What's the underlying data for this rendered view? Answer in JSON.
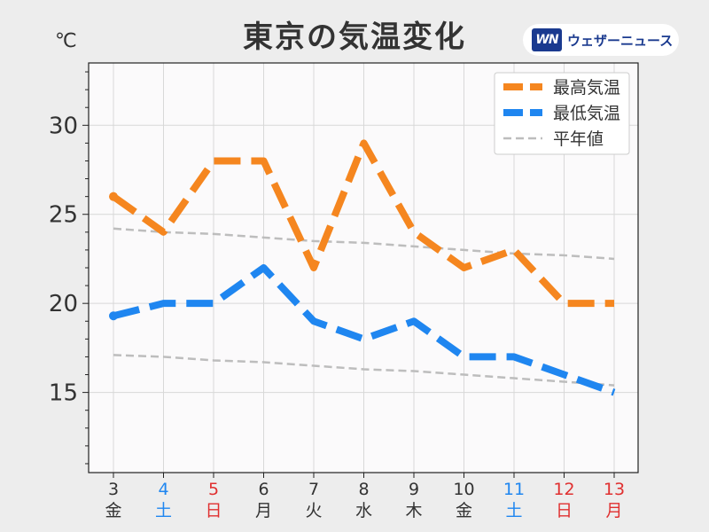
{
  "header": {
    "title": "東京の気温変化",
    "unit": "℃",
    "logo_mark": "WN",
    "logo_text": "ウェザーニュース"
  },
  "chart_data": {
    "type": "line",
    "x": [
      "3",
      "4",
      "5",
      "6",
      "7",
      "8",
      "9",
      "10",
      "11",
      "12",
      "13"
    ],
    "weekdays": [
      "金",
      "土",
      "日",
      "月",
      "火",
      "水",
      "木",
      "金",
      "土",
      "日",
      "月"
    ],
    "day_types": [
      "weekday",
      "saturday",
      "holiday",
      "weekday",
      "weekday",
      "weekday",
      "weekday",
      "weekday",
      "saturday",
      "holiday",
      "holiday"
    ],
    "series": [
      {
        "name": "最高気温",
        "color": "#f5861f",
        "style": "thick-dashed",
        "values": [
          26,
          24,
          28,
          28,
          22,
          29,
          24,
          22,
          23,
          20,
          20
        ]
      },
      {
        "name": "最低気温",
        "color": "#1f86f0",
        "style": "thick-dashed",
        "values": [
          19.3,
          20,
          20,
          22,
          19,
          18,
          19,
          17,
          17,
          16,
          15
        ]
      },
      {
        "name": "平年値",
        "color": "#bdbdbd",
        "style": "thin-dashed",
        "values": [
          24.2,
          24.0,
          23.9,
          23.7,
          23.5,
          23.4,
          23.2,
          23.0,
          22.8,
          22.7,
          22.5
        ]
      },
      {
        "name": "",
        "color": "#bdbdbd",
        "style": "thin-dashed",
        "values": [
          17.1,
          17.0,
          16.8,
          16.7,
          16.5,
          16.3,
          16.2,
          16.0,
          15.8,
          15.6,
          15.4
        ]
      }
    ],
    "yticks": [
      15,
      20,
      25,
      30
    ],
    "ylim": [
      10.5,
      33.5
    ],
    "grid": true,
    "legend": "top-right",
    "colors": {
      "weekday": "#333333",
      "saturday": "#1f86f0",
      "holiday": "#e03030"
    }
  }
}
